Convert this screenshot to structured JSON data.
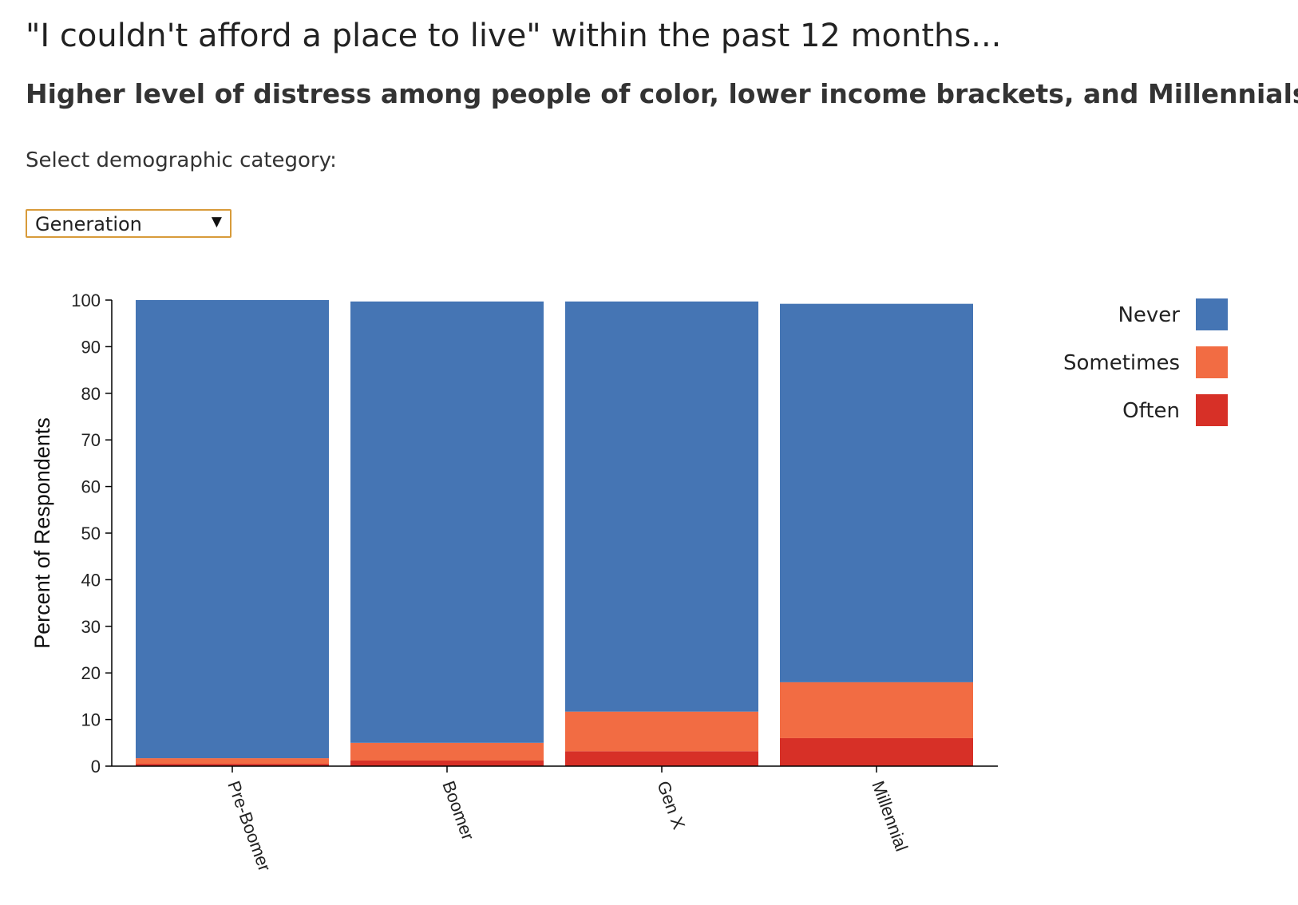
{
  "header": {
    "title": "\"I couldn't afford a place to live\" within the past 12 months...",
    "subtitle": "Higher level of distress among people of color, lower income brackets, and Millennials"
  },
  "controls": {
    "select_label": "Select demographic category:",
    "selected_value": "Generation"
  },
  "colors": {
    "Never": "#4575b4",
    "Sometimes": "#f26c43",
    "Often": "#d73027"
  },
  "chart_data": {
    "type": "bar",
    "stacked": true,
    "title": "",
    "xlabel": "",
    "ylabel": "Percent of Respondents",
    "ylim": [
      0,
      100
    ],
    "yticks": [
      0,
      10,
      20,
      30,
      40,
      50,
      60,
      70,
      80,
      90,
      100
    ],
    "categories": [
      "Pre-Boomer",
      "Boomer",
      "Gen X",
      "Millennial"
    ],
    "series": [
      {
        "name": "Often",
        "values": [
          0.5,
          1.2,
          3.2,
          6.0
        ]
      },
      {
        "name": "Sometimes",
        "values": [
          1.2,
          3.8,
          8.5,
          12.0
        ]
      },
      {
        "name": "Never",
        "values": [
          98.3,
          94.7,
          88.0,
          81.2
        ]
      }
    ],
    "legend": {
      "position": "top-right",
      "entries": [
        "Never",
        "Sometimes",
        "Often"
      ]
    },
    "grid": false
  }
}
